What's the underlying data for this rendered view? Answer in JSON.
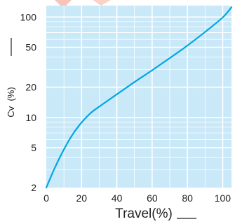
{
  "chart_data": {
    "type": "line",
    "xlabel": "Travel(%)",
    "ylabel": "Cv  (%)",
    "x_ticks": [
      0,
      20,
      40,
      60,
      80,
      100
    ],
    "y_ticks": [
      2,
      5,
      10,
      20,
      50,
      100
    ],
    "y_scale": "log",
    "xlim": [
      0,
      105
    ],
    "ylim": [
      2,
      130
    ],
    "grid": true,
    "series": [
      {
        "x": [
          0,
          5,
          10,
          15,
          20,
          25,
          30,
          40,
          50,
          60,
          70,
          80,
          90,
          100,
          105
        ],
        "values": [
          2,
          3.2,
          4.8,
          6.8,
          8.9,
          11,
          12.8,
          17,
          22.5,
          29.5,
          39,
          52,
          71,
          99,
          125
        ]
      }
    ]
  },
  "colors": {
    "plot_background": "#c9e8f8",
    "grid": "#ffffff",
    "line": "#00a6e4",
    "axis_text": "#222222"
  }
}
